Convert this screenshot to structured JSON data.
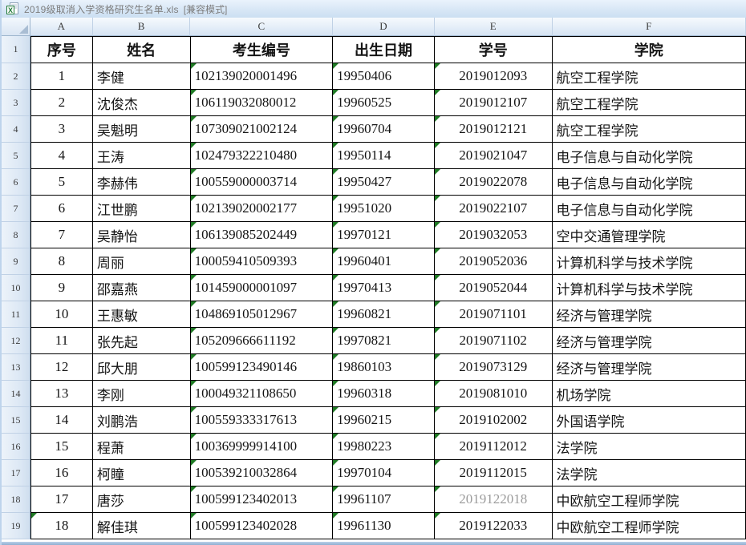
{
  "window": {
    "title": "2019级取消入学资格研究生名单.xls",
    "mode": "[兼容模式]",
    "icon": "excel-file-icon"
  },
  "sheet": {
    "column_letters": [
      "A",
      "B",
      "C",
      "D",
      "E",
      "F"
    ],
    "header_row": {
      "seq": "序号",
      "name": "姓名",
      "exam_no": "考生编号",
      "birth_date": "出生日期",
      "student_no": "学号",
      "college": "学院"
    },
    "rows": [
      {
        "seq": "1",
        "name": "李健",
        "exam_no": "102139020001496",
        "birth_date": "19950406",
        "student_no": "2019012093",
        "college": "航空工程学院"
      },
      {
        "seq": "2",
        "name": "沈俊杰",
        "exam_no": "106119032080012",
        "birth_date": "19960525",
        "student_no": "2019012107",
        "college": "航空工程学院"
      },
      {
        "seq": "3",
        "name": "吴魁明",
        "exam_no": "107309021002124",
        "birth_date": "19960704",
        "student_no": "2019012121",
        "college": "航空工程学院"
      },
      {
        "seq": "4",
        "name": "王涛",
        "exam_no": "102479322210480",
        "birth_date": "19950114",
        "student_no": "2019021047",
        "college": "电子信息与自动化学院"
      },
      {
        "seq": "5",
        "name": "李赫伟",
        "exam_no": "100559000003714",
        "birth_date": "19950427",
        "student_no": "2019022078",
        "college": "电子信息与自动化学院"
      },
      {
        "seq": "6",
        "name": "江世鹏",
        "exam_no": "102139020002177",
        "birth_date": "19951020",
        "student_no": "2019022107",
        "college": "电子信息与自动化学院"
      },
      {
        "seq": "7",
        "name": "吴静怡",
        "exam_no": "106139085202449",
        "birth_date": "19970121",
        "student_no": "2019032053",
        "college": "空中交通管理学院"
      },
      {
        "seq": "8",
        "name": "周丽",
        "exam_no": "100059410509393",
        "birth_date": "19960401",
        "student_no": "2019052036",
        "college": "计算机科学与技术学院"
      },
      {
        "seq": "9",
        "name": "邵嘉燕",
        "exam_no": "101459000001097",
        "birth_date": "19970413",
        "student_no": "2019052044",
        "college": "计算机科学与技术学院"
      },
      {
        "seq": "10",
        "name": "王惠敏",
        "exam_no": "104869105012967",
        "birth_date": "19960821",
        "student_no": "2019071101",
        "college": "经济与管理学院"
      },
      {
        "seq": "11",
        "name": "张先起",
        "exam_no": "105209666611192",
        "birth_date": "19970821",
        "student_no": "2019071102",
        "college": "经济与管理学院"
      },
      {
        "seq": "12",
        "name": "邱大朋",
        "exam_no": "100599123490146",
        "birth_date": "19860103",
        "student_no": "2019073129",
        "college": "经济与管理学院"
      },
      {
        "seq": "13",
        "name": "李刚",
        "exam_no": "100049321108650",
        "birth_date": "19960318",
        "student_no": "2019081010",
        "college": "机场学院"
      },
      {
        "seq": "14",
        "name": "刘鹏浩",
        "exam_no": "100559333317613",
        "birth_date": "19960215",
        "student_no": "2019102002",
        "college": "外国语学院"
      },
      {
        "seq": "15",
        "name": "程萧",
        "exam_no": "100369999914100",
        "birth_date": "19980223",
        "student_no": "2019112012",
        "college": "法学院"
      },
      {
        "seq": "16",
        "name": "柯瞳",
        "exam_no": "100539210032864",
        "birth_date": "19970104",
        "student_no": "2019112015",
        "college": "法学院"
      },
      {
        "seq": "17",
        "name": "唐莎",
        "exam_no": "100599123402013",
        "birth_date": "19961107",
        "student_no": "2019122018",
        "college": "中欧航空工程师学院"
      },
      {
        "seq": "18",
        "name": "解佳琪",
        "exam_no": "100599123402028",
        "birth_date": "19961130",
        "student_no": "2019122033",
        "college": "中欧航空工程师学院"
      }
    ],
    "indicators": {
      "green_triangle_columns": [
        "exam_no",
        "birth_date",
        "student_no"
      ],
      "extra_green_triangle_cells": [
        {
          "sheet_row": 19,
          "column": "seq"
        }
      ]
    },
    "muted_cells": [
      {
        "sheet_row": 18,
        "column": "student_no"
      }
    ]
  },
  "colors": {
    "green_indicator": "#1f7a24",
    "grid_border": "#000000",
    "muted_text": "#9b9b9b",
    "title_text": "#7d7d7d"
  }
}
